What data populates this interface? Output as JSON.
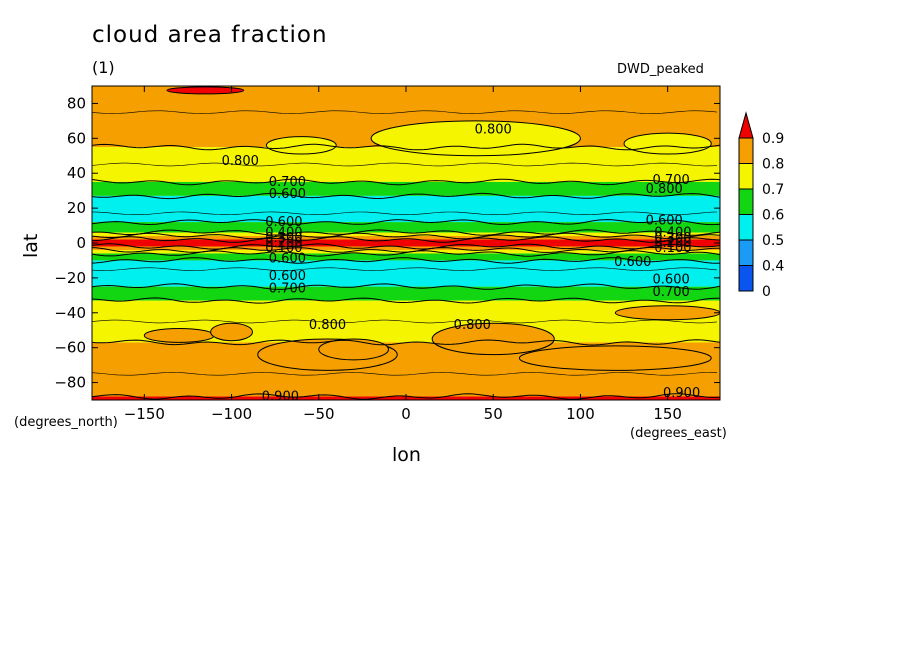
{
  "chart_data": {
    "type": "heatmap",
    "title": "cloud area fraction",
    "units": "(1)",
    "run_label": "DWD_peaked",
    "xlabel": "lon",
    "ylabel": "lat",
    "x_units": "(degrees_east)",
    "y_units": "(degrees_north)",
    "xlim": [
      -180,
      180
    ],
    "ylim": [
      -90,
      90
    ],
    "x_ticks": [
      -150,
      -100,
      -50,
      0,
      50,
      100,
      150
    ],
    "y_ticks": [
      80,
      60,
      40,
      20,
      0,
      -20,
      -40,
      -60,
      -80
    ],
    "levels": [
      0,
      0.4,
      0.5,
      0.6,
      0.7,
      0.8,
      0.9
    ],
    "level_colors": [
      "#0a55f0",
      "#1a9bf5",
      "#00f0f0",
      "#12d612",
      "#f5f500",
      "#f5a000",
      "#f00000"
    ],
    "colorbar_labels": [
      "0.9",
      "0.8",
      "0.7",
      "0.6",
      "0.5",
      "0.4",
      "0"
    ],
    "zonal_bands": [
      {
        "lat_from": 90,
        "lat_to": 55,
        "value": 0.85
      },
      {
        "lat_from": 55,
        "lat_to": 35,
        "value": 0.75
      },
      {
        "lat_from": 35,
        "lat_to": 27,
        "value": 0.65
      },
      {
        "lat_from": 27,
        "lat_to": 12,
        "value": 0.55
      },
      {
        "lat_from": 12,
        "lat_to": 6,
        "value": 0.65
      },
      {
        "lat_from": 6,
        "lat_to": 4,
        "value": 0.75
      },
      {
        "lat_from": 4,
        "lat_to": 2,
        "value": 0.85
      },
      {
        "lat_from": 2,
        "lat_to": -2,
        "value": 0.95
      },
      {
        "lat_from": -2,
        "lat_to": -4,
        "value": 0.85
      },
      {
        "lat_from": -4,
        "lat_to": -6,
        "value": 0.75
      },
      {
        "lat_from": -6,
        "lat_to": -10,
        "value": 0.65
      },
      {
        "lat_from": -10,
        "lat_to": -25,
        "value": 0.55
      },
      {
        "lat_from": -25,
        "lat_to": -33,
        "value": 0.65
      },
      {
        "lat_from": -33,
        "lat_to": -57,
        "value": 0.75
      },
      {
        "lat_from": -57,
        "lat_to": -88,
        "value": 0.85
      },
      {
        "lat_from": -88,
        "lat_to": -90,
        "value": 0.95
      }
    ],
    "patches": [
      {
        "lon": -115,
        "lat": 87.5,
        "rlon": 22,
        "rlat": 2,
        "value": 0.95
      },
      {
        "lon": 40,
        "lat": 60,
        "rlon": 60,
        "rlat": 10,
        "value": 0.75
      },
      {
        "lon": -60,
        "lat": 56,
        "rlon": 20,
        "rlat": 5,
        "value": 0.75
      },
      {
        "lon": 150,
        "lat": 57,
        "rlon": 25,
        "rlat": 6,
        "value": 0.75
      },
      {
        "lon": -130,
        "lat": -53,
        "rlon": 20,
        "rlat": 4,
        "value": 0.85
      },
      {
        "lon": -100,
        "lat": -51,
        "rlon": 12,
        "rlat": 5,
        "value": 0.85
      },
      {
        "lon": -45,
        "lat": -64,
        "rlon": 40,
        "rlat": 9,
        "value": 0.85
      },
      {
        "lon": 50,
        "lat": -55,
        "rlon": 35,
        "rlat": 9,
        "value": 0.85
      },
      {
        "lon": 120,
        "lat": -66,
        "rlon": 55,
        "rlat": 7,
        "value": 0.85
      },
      {
        "lon": -30,
        "lat": -61,
        "rlon": 20,
        "rlat": 6,
        "value": 0.85
      },
      {
        "lon": 150,
        "lat": -40,
        "rlon": 30,
        "rlat": 4,
        "value": 0.85
      }
    ],
    "contour_labels": [
      {
        "text": "0.800",
        "lon": 50,
        "lat": 65
      },
      {
        "text": "0.800",
        "lon": -95,
        "lat": 47
      },
      {
        "text": "0.700",
        "lon": -68,
        "lat": 35
      },
      {
        "text": "0.600",
        "lon": -68,
        "lat": 28
      },
      {
        "text": "0.600",
        "lon": -70,
        "lat": 12
      },
      {
        "text": "0.700",
        "lon": 152,
        "lat": 36
      },
      {
        "text": "0.800",
        "lon": 148,
        "lat": 31
      },
      {
        "text": "0.600",
        "lon": 148,
        "lat": 13
      },
      {
        "text": "0.400",
        "lon": -70,
        "lat": 6
      },
      {
        "text": "0.300",
        "lon": -70,
        "lat": 3
      },
      {
        "text": "0.200",
        "lon": -70,
        "lat": 0
      },
      {
        "text": "0.100",
        "lon": -70,
        "lat": -3
      },
      {
        "text": "0.400",
        "lon": 153,
        "lat": 6
      },
      {
        "text": "0.300",
        "lon": 153,
        "lat": 3
      },
      {
        "text": "0.200",
        "lon": 153,
        "lat": 0
      },
      {
        "text": "0.100",
        "lon": 153,
        "lat": -3
      },
      {
        "text": "0.600",
        "lon": -68,
        "lat": -9
      },
      {
        "text": "0.600",
        "lon": 130,
        "lat": -11
      },
      {
        "text": "0.600",
        "lon": -68,
        "lat": -19
      },
      {
        "text": "0.600",
        "lon": 152,
        "lat": -21
      },
      {
        "text": "0.700",
        "lon": -68,
        "lat": -26
      },
      {
        "text": "0.700",
        "lon": 152,
        "lat": -28
      },
      {
        "text": "0.800",
        "lon": -45,
        "lat": -47
      },
      {
        "text": "0.800",
        "lon": 38,
        "lat": -47
      },
      {
        "text": "0.900",
        "lon": -72,
        "lat": -88
      },
      {
        "text": "0.900",
        "lon": 158,
        "lat": -86
      }
    ]
  }
}
